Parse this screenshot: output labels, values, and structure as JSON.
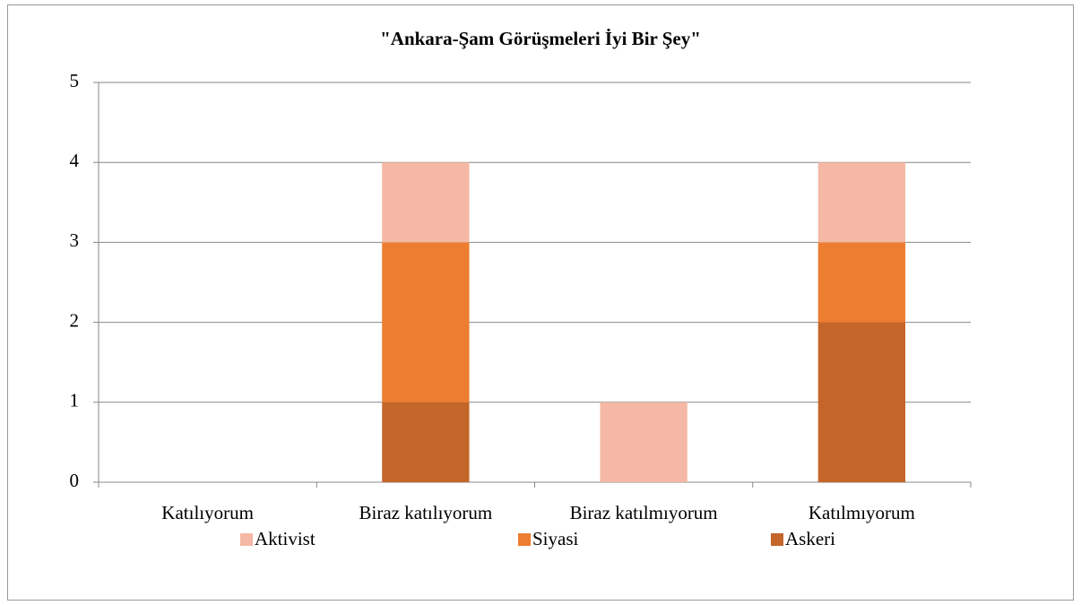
{
  "chart_data": {
    "type": "stacked_bar",
    "title": "\"Ankara-Şam Görüşmeleri İyi Bir Şey\"",
    "categories": [
      "Katılıyorum",
      "Biraz katılıyorum",
      "Biraz katılmıyorum",
      "Katılmıyorum"
    ],
    "series": [
      {
        "name": "Askeri",
        "color": "#c4652a",
        "values": [
          0,
          1,
          0,
          2
        ]
      },
      {
        "name": "Siyasi",
        "color": "#ed7d31",
        "values": [
          0,
          2,
          0,
          1
        ]
      },
      {
        "name": "Aktivist",
        "color": "#f4b8a4",
        "values": [
          0,
          1,
          1,
          1
        ]
      }
    ],
    "ylim": [
      0,
      5
    ],
    "yticks": [
      0,
      1,
      2,
      3,
      4,
      5
    ],
    "grid": true,
    "legend": "bottom"
  }
}
